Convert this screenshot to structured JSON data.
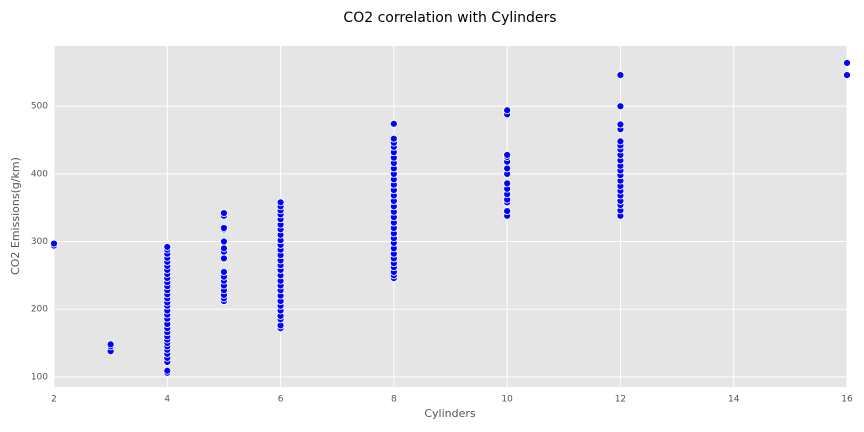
{
  "chart_data": {
    "type": "scatter",
    "title": "CO2 correlation with Cylinders",
    "x_label": "Cylinders",
    "y_label": "CO2 Emissions(g/km)",
    "color": "#0000ff",
    "grid": true,
    "xlim": [
      2,
      16
    ],
    "xticks": [
      2,
      4,
      6,
      8,
      10,
      12,
      14,
      16
    ],
    "ylim": [
      85,
      589
    ],
    "yticks": [
      100,
      200,
      300,
      400,
      500
    ],
    "x": [
      2,
      2,
      3,
      3,
      3,
      4,
      4,
      4,
      4,
      4,
      4,
      4,
      4,
      4,
      4,
      4,
      4,
      4,
      4,
      4,
      4,
      4,
      4,
      4,
      4,
      4,
      4,
      4,
      4,
      4,
      4,
      4,
      4,
      4,
      4,
      4,
      4,
      5,
      5,
      5,
      5,
      5,
      5,
      5,
      5,
      5,
      5,
      5,
      5,
      5,
      5,
      5,
      5,
      6,
      6,
      6,
      6,
      6,
      6,
      6,
      6,
      6,
      6,
      6,
      6,
      6,
      6,
      6,
      6,
      6,
      6,
      6,
      6,
      6,
      6,
      6,
      6,
      6,
      6,
      6,
      8,
      8,
      8,
      8,
      8,
      8,
      8,
      8,
      8,
      8,
      8,
      8,
      8,
      8,
      8,
      8,
      8,
      8,
      8,
      8,
      8,
      8,
      8,
      8,
      8,
      8,
      8,
      8,
      8,
      8,
      10,
      10,
      10,
      10,
      10,
      10,
      10,
      10,
      10,
      10,
      10,
      10,
      10,
      10,
      12,
      12,
      12,
      12,
      12,
      12,
      12,
      12,
      12,
      12,
      12,
      12,
      12,
      12,
      12,
      12,
      12,
      12,
      12,
      12,
      16,
      16
    ],
    "y": [
      294,
      297,
      138,
      145,
      148,
      106,
      109,
      122,
      128,
      134,
      140,
      145,
      150,
      155,
      160,
      166,
      172,
      178,
      186,
      192,
      198,
      205,
      210,
      216,
      222,
      228,
      234,
      240,
      246,
      252,
      258,
      264,
      270,
      276,
      282,
      288,
      292,
      212,
      216,
      221,
      228,
      235,
      242,
      248,
      255,
      275,
      285,
      290,
      300,
      318,
      320,
      338,
      342,
      172,
      176,
      185,
      190,
      198,
      205,
      212,
      220,
      228,
      235,
      242,
      250,
      258,
      265,
      272,
      280,
      288,
      295,
      302,
      310,
      318,
      325,
      333,
      340,
      346,
      352,
      358,
      246,
      250,
      255,
      262,
      268,
      275,
      282,
      290,
      298,
      305,
      312,
      320,
      328,
      336,
      344,
      352,
      360,
      368,
      376,
      384,
      392,
      400,
      408,
      416,
      424,
      432,
      440,
      446,
      452,
      474,
      338,
      345,
      358,
      362,
      370,
      378,
      386,
      400,
      408,
      418,
      425,
      428,
      488,
      494,
      338,
      346,
      354,
      360,
      368,
      375,
      382,
      390,
      398,
      405,
      412,
      420,
      428,
      436,
      442,
      448,
      466,
      473,
      500,
      546,
      546,
      564
    ]
  }
}
